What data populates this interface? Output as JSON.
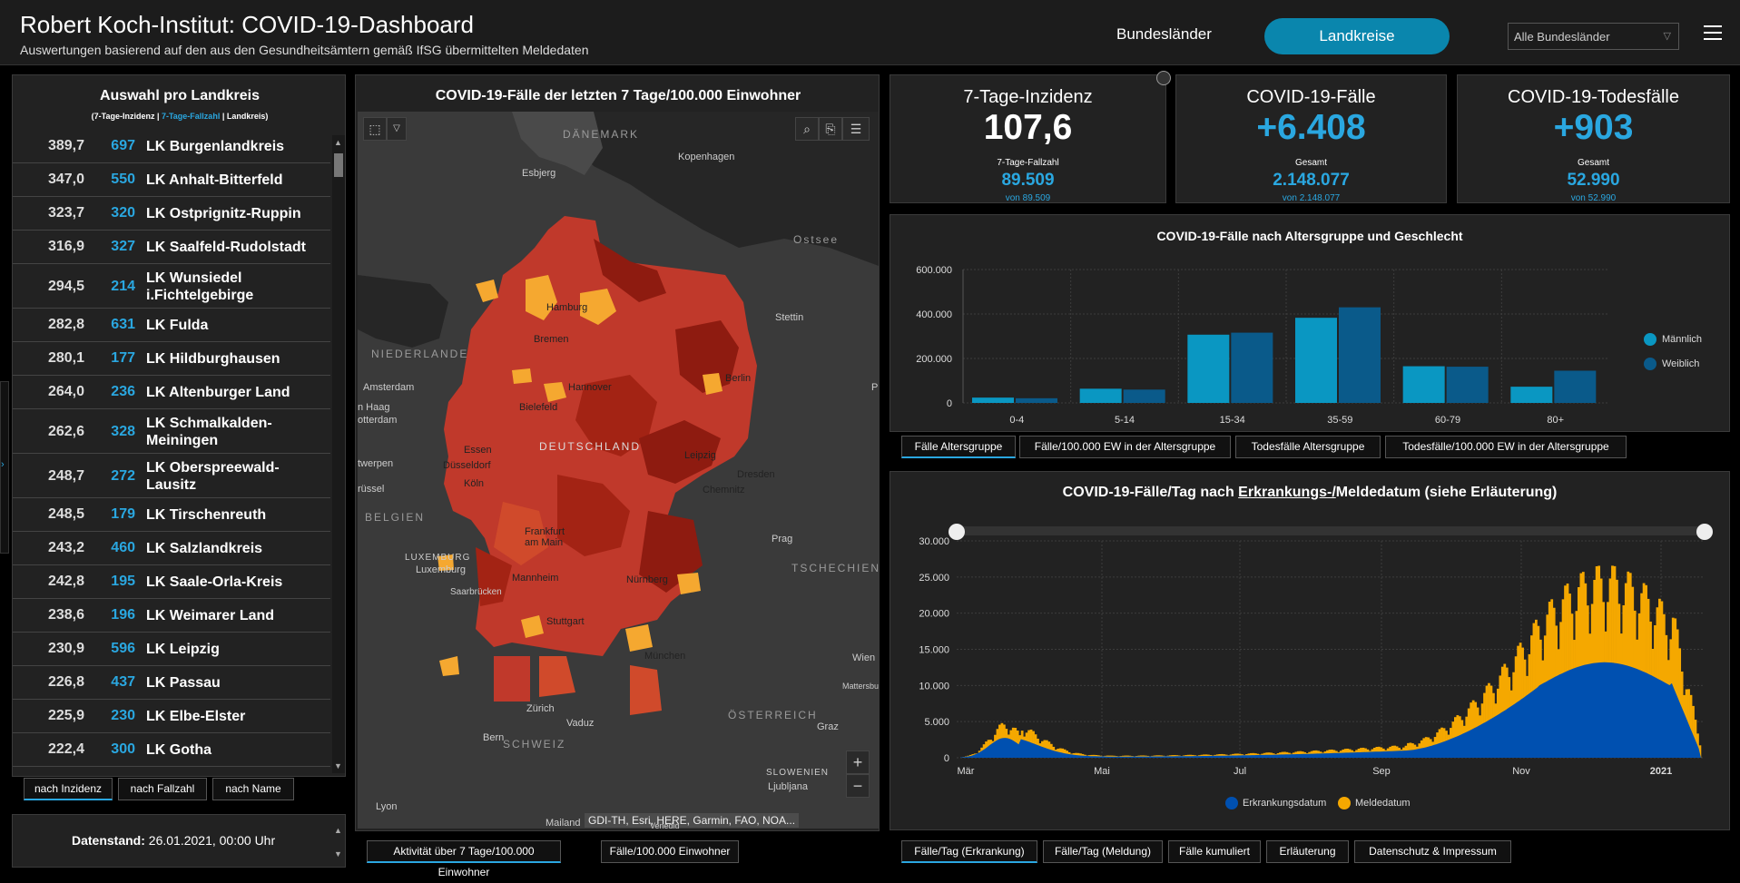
{
  "header": {
    "title": "Robert Koch-Institut: COVID-19-Dashboard",
    "subtitle": "Auswertungen basierend auf den aus den Gesundheitsämtern gemäß IfSG übermittelten Meldedaten",
    "tab_bundeslaender": "Bundesländer",
    "tab_landkreise": "Landkreise",
    "region_select": "Alle Bundesländer",
    "accent": "#0a86ad"
  },
  "list": {
    "title": "Auswahl pro Landkreis",
    "legend_a": "(7-Tage-Inzidenz | ",
    "legend_b": "7-Tage-Fallzahl",
    "legend_c": " | Landkreis)",
    "rows": [
      {
        "inz": "389,7",
        "cnt": "697",
        "name": "LK Burgenlandkreis"
      },
      {
        "inz": "347,0",
        "cnt": "550",
        "name": "LK Anhalt-Bitterfeld"
      },
      {
        "inz": "323,7",
        "cnt": "320",
        "name": "LK Ostprignitz-Ruppin"
      },
      {
        "inz": "316,9",
        "cnt": "327",
        "name": "LK Saalfeld-Rudolstadt"
      },
      {
        "inz": "294,5",
        "cnt": "214",
        "name": "LK Wunsiedel i.Fichtelgebirge"
      },
      {
        "inz": "282,8",
        "cnt": "631",
        "name": "LK Fulda"
      },
      {
        "inz": "280,1",
        "cnt": "177",
        "name": "LK Hildburghausen"
      },
      {
        "inz": "264,0",
        "cnt": "236",
        "name": "LK Altenburger Land"
      },
      {
        "inz": "262,6",
        "cnt": "328",
        "name": "LK Schmalkalden-Meiningen"
      },
      {
        "inz": "248,7",
        "cnt": "272",
        "name": "LK Oberspreewald-Lausitz"
      },
      {
        "inz": "248,5",
        "cnt": "179",
        "name": "LK Tirschenreuth"
      },
      {
        "inz": "243,2",
        "cnt": "460",
        "name": "LK Salzlandkreis"
      },
      {
        "inz": "242,8",
        "cnt": "195",
        "name": "LK Saale-Orla-Kreis"
      },
      {
        "inz": "238,6",
        "cnt": "196",
        "name": "LK Weimarer Land"
      },
      {
        "inz": "230,9",
        "cnt": "596",
        "name": "LK Leipzig"
      },
      {
        "inz": "226,8",
        "cnt": "437",
        "name": "LK Passau"
      },
      {
        "inz": "225,9",
        "cnt": "230",
        "name": "LK Elbe-Elster"
      },
      {
        "inz": "222,4",
        "cnt": "300",
        "name": "LK Gotha"
      }
    ],
    "sort_tabs": [
      "nach Inzidenz",
      "nach Fallzahl",
      "nach Name"
    ],
    "date_label": "Datenstand:",
    "date_value": " 26.01.2021, 00:00 Uhr"
  },
  "map": {
    "title": "COVID-19-Fälle der letzten 7 Tage/100.000 Einwohner",
    "attribution": "GDI-TH, Esri, HERE, Garmin, FAO, NOA...",
    "labels": {
      "daenemark": "DÄNEMARK",
      "kopenhagen": "Kopenhagen",
      "esbjerg": "Esbjerg",
      "ostsee": "Ostsee",
      "hamburg": "Hamburg",
      "stettin": "Stettin",
      "bremen": "Bremen",
      "niederlande": "NIEDERLANDE",
      "amsterdam": "Amsterdam",
      "hannover": "Hannover",
      "berlin": "Berlin",
      "haag": "n Haag",
      "rotterdam": "otterdam",
      "bielefeld": "Bielefeld",
      "essen": "Essen",
      "duesseldorf": "Düsseldorf",
      "deutschland": "DEUTSCHLAND",
      "leipzig": "Leipzig",
      "koeln": "Köln",
      "antwerpen": "twerpen",
      "bruessel": "rüssel",
      "chemnitz": "Chemnitz",
      "dresden": "Dresden",
      "belgien": "BELGIEN",
      "frankfurt": "Frankfurt am Main",
      "prag": "Prag",
      "luxemburg_c": "LUXEMBURG",
      "luxemburg": "Luxemburg",
      "tschechien": "TSCHECHIEN",
      "mannheim": "Mannheim",
      "nuernberg": "Nürnberg",
      "saarbruecken": "Saarbrücken",
      "stuttgart": "Stuttgart",
      "muenchen": "München",
      "wien": "Wien",
      "mattersburg": "Mattersbu",
      "zuerich": "Zürich",
      "oesterreich": "ÖSTERREICH",
      "vaduz": "Vaduz",
      "graz": "Graz",
      "bern": "Bern",
      "schweiz": "SCHWEIZ",
      "slowenien": "SLOWENIEN",
      "ljubljana": "Ljubljana",
      "lyon": "Lyon",
      "mailand": "Mailand",
      "venedig": "Venedig",
      "p": "P"
    },
    "tabs": [
      "Aktivität über 7 Tage/100.000 Einwohner",
      "Fälle/100.000 Einwohner"
    ]
  },
  "kpi": [
    {
      "title": "7-Tage-Inzidenz",
      "big": "107,6",
      "sub": "7-Tage-Fallzahl",
      "subv": "89.509",
      "subs": "von 89.509",
      "color": "#ffffff"
    },
    {
      "title": "COVID-19-Fälle",
      "big": "+6.408",
      "sub": "Gesamt",
      "subv": "2.148.077",
      "subs": "von 2.148.077",
      "color": "#2aa7e0"
    },
    {
      "title": "COVID-19-Todesfälle",
      "big": "+903",
      "sub": "Gesamt",
      "subv": "52.990",
      "subs": "von 52.990",
      "color": "#2aa7e0"
    }
  ],
  "age_tabs": [
    "Fälle Altersgruppe",
    "Fälle/100.000 EW in der Altersgruppe",
    "Todesfälle Altersgruppe",
    "Todesfälle/100.000 EW in der Altersgruppe"
  ],
  "daily": {
    "title_a": "COVID-19-Fälle/Tag nach ",
    "title_u": "Erkrankungs-/",
    "title_b": "Meldedatum (siehe Erläuterung)",
    "legend": [
      "Erkrankungsdatum",
      "Meldedatum"
    ]
  },
  "daily_tabs": [
    "Fälle/Tag (Erkrankung)",
    "Fälle/Tag (Meldung)",
    "Fälle kumuliert",
    "Erläuterung",
    "Datenschutz & Impressum"
  ],
  "chart_data": [
    {
      "type": "bar",
      "title": "COVID-19-Fälle nach Altersgruppe und Geschlecht",
      "categories": [
        "0-4",
        "5-14",
        "15-34",
        "35-59",
        "60-79",
        "80+"
      ],
      "series": [
        {
          "name": "Männlich",
          "values": [
            24000,
            64000,
            307000,
            383000,
            165000,
            73000
          ],
          "color": "#0a97c2"
        },
        {
          "name": "Weiblich",
          "values": [
            21000,
            60000,
            316000,
            430000,
            163000,
            145000
          ],
          "color": "#0a5a8a"
        }
      ],
      "ylim": [
        0,
        600000
      ],
      "yticks": [
        "0",
        "200.000",
        "400.000",
        "600.000"
      ],
      "legend": "right",
      "grid": true
    },
    {
      "type": "area",
      "title": "COVID-19-Fälle/Tag nach Erkrankungs-/Meldedatum (siehe Erläuterung)",
      "xticks": [
        "Mär",
        "Mai",
        "Jul",
        "Sep",
        "Nov",
        "2021"
      ],
      "yticks": [
        "0",
        "5.000",
        "10.000",
        "15.000",
        "20.000",
        "25.000",
        "30.000"
      ],
      "ylim": [
        0,
        30000
      ],
      "series": [
        {
          "name": "Erkrankungsdatum",
          "color": "#0050b0"
        },
        {
          "name": "Meldedatum",
          "color": "#f5a800"
        }
      ],
      "peaks": {
        "Erkrankungsdatum_max": 13000,
        "Meldedatum_max": 28500,
        "spring_peak": 5000
      },
      "legend": "bottom",
      "grid": true
    }
  ]
}
